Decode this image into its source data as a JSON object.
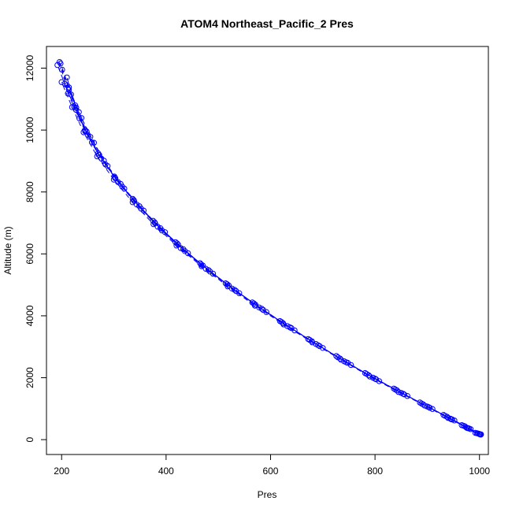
{
  "chart_data": {
    "type": "scatter",
    "title": "ATOM4 Northeast_Pacific_2 Pres",
    "xlabel": "Pres",
    "ylabel": "Altitude (m)",
    "xlim": [
      171,
      1017
    ],
    "ylim": [
      -480,
      12700
    ],
    "xticks": [
      200,
      400,
      600,
      800,
      1000
    ],
    "yticks": [
      0,
      2000,
      4000,
      6000,
      8000,
      10000,
      12000
    ],
    "grid": false,
    "legend": "none",
    "color": "#0000ff",
    "marker": "open-circle",
    "connect": "dashed-line",
    "series": [
      {
        "x": [
          1000,
          975,
          940,
          895,
          845,
          790,
          735,
          680,
          625,
          570,
          518,
          468,
          420,
          376,
          336,
          300,
          268,
          242,
          220,
          200
        ],
        "y": [
          180,
          390,
          700,
          1100,
          1540,
          2040,
          2580,
          3140,
          3720,
          4330,
          4950,
          5600,
          6270,
          6960,
          7670,
          8400,
          9150,
          9930,
          10740,
          11550
        ]
      },
      {
        "x": [
          1003,
          980,
          948,
          905,
          856,
          802,
          748,
          694,
          640,
          586,
          534,
          484,
          436,
          392,
          352,
          316,
          284,
          258,
          234,
          212,
          196
        ],
        "y": [
          170,
          360,
          650,
          1030,
          1460,
          1950,
          2480,
          3020,
          3600,
          4190,
          4800,
          5430,
          6090,
          6760,
          7460,
          8170,
          8890,
          9600,
          10380,
          11180,
          12200
        ]
      },
      {
        "x": [
          997,
          972,
          938,
          892,
          842,
          788,
          733,
          679,
          624,
          571,
          520,
          470,
          423,
          379,
          339,
          303,
          271,
          245,
          224,
          206,
          192
        ],
        "y": [
          200,
          430,
          740,
          1140,
          1590,
          2080,
          2620,
          3180,
          3760,
          4360,
          4980,
          5630,
          6300,
          6990,
          7710,
          8440,
          9200,
          9960,
          10760,
          11500,
          12100
        ]
      },
      {
        "x": [
          992,
          966,
          931,
          886,
          836,
          781,
          726,
          672,
          618,
          565,
          514,
          465,
          418,
          375,
          336,
          301,
          270,
          245,
          226,
          210
        ],
        "y": [
          220,
          470,
          800,
          1200,
          1650,
          2150,
          2700,
          3250,
          3830,
          4430,
          5050,
          5700,
          6380,
          7070,
          7780,
          8500,
          9250,
          10000,
          10800,
          11700
        ]
      },
      {
        "x": [
          999,
          976,
          944,
          900,
          850,
          796,
          741,
          687,
          632,
          578,
          526,
          476,
          428,
          384,
          344,
          308,
          276,
          250,
          228,
          210
        ],
        "y": [
          190,
          380,
          680,
          1070,
          1510,
          2000,
          2530,
          3090,
          3670,
          4270,
          4880,
          5520,
          6190,
          6880,
          7590,
          8320,
          9080,
          9850,
          10650,
          11450
        ]
      },
      {
        "x": [
          1001,
          978,
          946,
          903,
          854,
          800,
          745,
          691,
          637,
          583,
          531,
          481,
          433,
          389,
          349,
          313,
          281,
          255,
          233,
          214,
          198
        ],
        "y": [
          175,
          370,
          660,
          1050,
          1480,
          1970,
          2500,
          3050,
          3630,
          4230,
          4840,
          5480,
          6150,
          6830,
          7540,
          8260,
          9010,
          9780,
          10580,
          11380,
          12150
        ]
      },
      {
        "x": [
          995,
          969,
          934,
          889,
          839,
          784,
          729,
          675,
          621,
          568,
          517,
          467,
          421,
          378,
          338,
          302,
          272,
          248,
          228,
          214
        ],
        "y": [
          210,
          450,
          770,
          1170,
          1620,
          2120,
          2660,
          3220,
          3800,
          4400,
          5020,
          5660,
          6340,
          7020,
          7740,
          8460,
          9200,
          9950,
          10720,
          11300
        ]
      },
      {
        "x": [
          1002,
          983,
          952,
          910,
          862,
          808,
          754,
          700,
          646,
          592,
          540,
          490,
          442,
          398,
          357,
          320,
          288,
          262,
          238,
          218,
          201
        ],
        "y": [
          165,
          340,
          620,
          990,
          1410,
          1890,
          2410,
          2960,
          3530,
          4120,
          4730,
          5360,
          6020,
          6700,
          7400,
          8110,
          8840,
          9590,
          10390,
          11150,
          11950
        ]
      }
    ]
  }
}
